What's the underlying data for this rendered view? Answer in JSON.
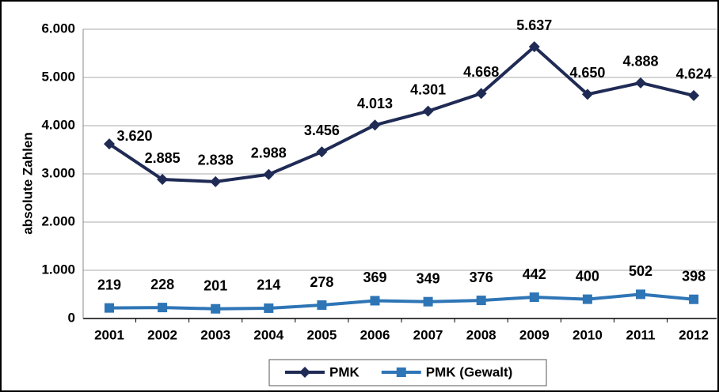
{
  "chart_data": {
    "type": "line",
    "y_label": "absolute Zahlen",
    "categories": [
      "2001",
      "2002",
      "2003",
      "2004",
      "2005",
      "2006",
      "2007",
      "2008",
      "2009",
      "2010",
      "2011",
      "2012"
    ],
    "series": [
      {
        "name": "PMK",
        "color": "#1f2b55",
        "marker": "diamond",
        "values": [
          3620,
          2885,
          2838,
          2988,
          3456,
          4013,
          4301,
          4668,
          5637,
          4650,
          4888,
          4624
        ],
        "value_labels": [
          "3.620",
          "2.885",
          "2.838",
          "2.988",
          "3.456",
          "4.013",
          "4.301",
          "4.668",
          "5.637",
          "4.650",
          "4.888",
          "4.624"
        ]
      },
      {
        "name": "PMK (Gewalt)",
        "color": "#2e75b6",
        "marker": "square",
        "values": [
          219,
          228,
          201,
          214,
          278,
          369,
          349,
          376,
          442,
          400,
          502,
          398
        ]
      }
    ],
    "ylim": [
      0,
      6000
    ],
    "yticks": [
      0,
      {
        "value": 1000,
        "label": "1.000"
      },
      {
        "value": 2000,
        "label": "2.000"
      },
      {
        "value": 3000,
        "label": "3.000"
      },
      {
        "value": 4000,
        "label": "4.000"
      },
      {
        "value": 5000,
        "label": "5.000"
      },
      {
        "value": 6000,
        "label": "6.000"
      }
    ],
    "grid": true,
    "legend": "bottom"
  }
}
